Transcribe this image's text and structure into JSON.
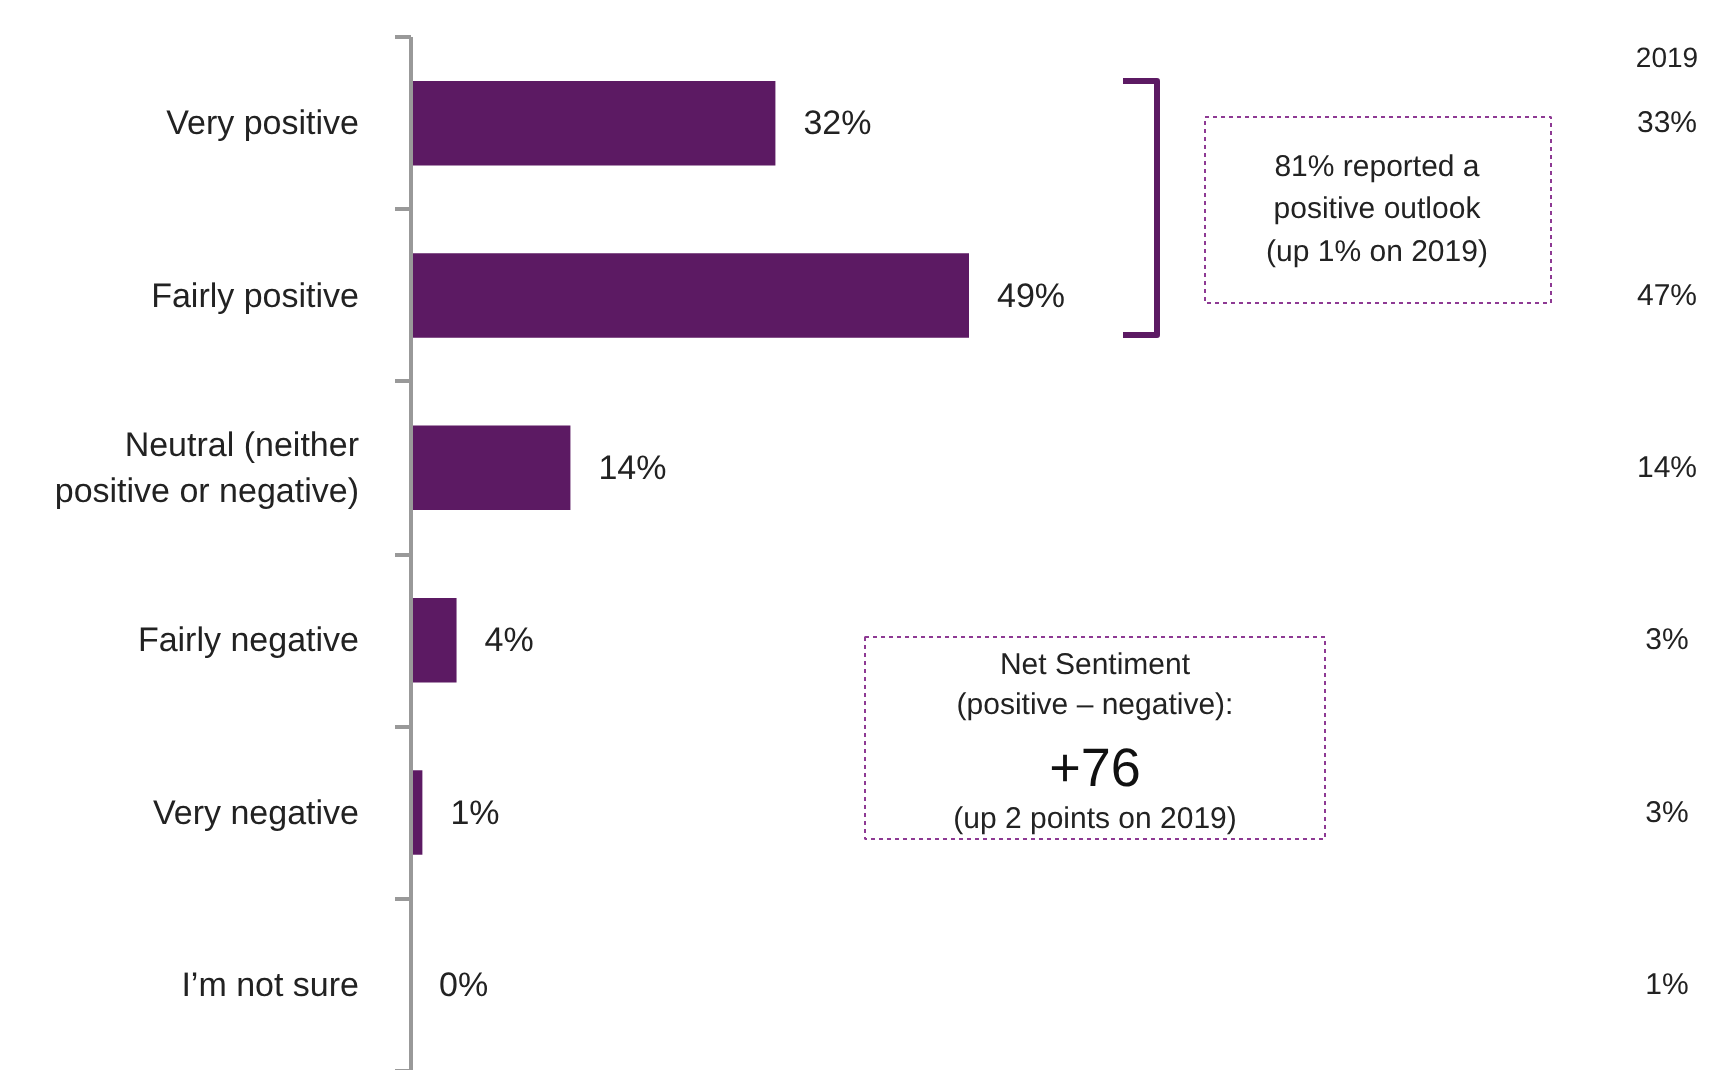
{
  "chart_data": {
    "type": "bar",
    "orientation": "horizontal",
    "categories": [
      "Very positive",
      "Fairly positive",
      "Neutral (neither\npositive or negative)",
      "Fairly negative",
      "Very negative",
      "I’m not sure"
    ],
    "values": [
      32,
      49,
      14,
      4,
      1,
      0
    ],
    "value_labels": [
      "32%",
      "49%",
      "14%",
      "4%",
      "1%",
      "0%"
    ],
    "color": "#5c1a63",
    "grid": false,
    "annotations": [
      "2019",
      "33%",
      "47%",
      "14%",
      "3%",
      "3%",
      "1%",
      "81% reported a\npositive outlook\n(up 1% on 2019)",
      "Net Sentiment\n(positive – negative):",
      "+76",
      "(up 2 points on 2019)"
    ]
  }
}
